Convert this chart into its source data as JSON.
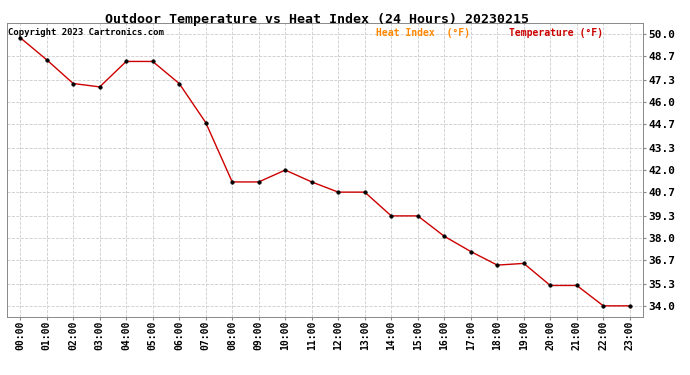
{
  "title": "Outdoor Temperature vs Heat Index (24 Hours) 20230215",
  "copyright": "Copyright 2023 Cartronics.com",
  "legend_heat": "Heat Index  (°F)",
  "legend_temp": "Temperature (°F)",
  "x_labels": [
    "00:00",
    "01:00",
    "02:00",
    "03:00",
    "04:00",
    "05:00",
    "06:00",
    "07:00",
    "08:00",
    "09:00",
    "10:00",
    "11:00",
    "12:00",
    "13:00",
    "14:00",
    "15:00",
    "16:00",
    "17:00",
    "18:00",
    "19:00",
    "20:00",
    "21:00",
    "22:00",
    "23:00"
  ],
  "temperature": [
    49.8,
    48.5,
    47.1,
    46.9,
    48.4,
    48.4,
    47.1,
    44.8,
    41.3,
    41.3,
    42.0,
    41.3,
    40.7,
    40.7,
    39.3,
    39.3,
    38.1,
    37.2,
    36.4,
    36.5,
    35.2,
    35.2,
    34.0,
    34.0
  ],
  "y_ticks": [
    34.0,
    35.3,
    36.7,
    38.0,
    39.3,
    40.7,
    42.0,
    43.3,
    44.7,
    46.0,
    47.3,
    48.7,
    50.0
  ],
  "ylim_min": 33.35,
  "ylim_max": 50.65,
  "line_color": "#cc0000",
  "marker_color": "#000000",
  "bg_color": "#ffffff",
  "grid_color": "#cccccc",
  "title_color": "#000000",
  "copyright_color": "#000000",
  "legend_heat_color": "#ff8800",
  "legend_temp_color": "#cc0000",
  "tick_label_color": "#000000"
}
